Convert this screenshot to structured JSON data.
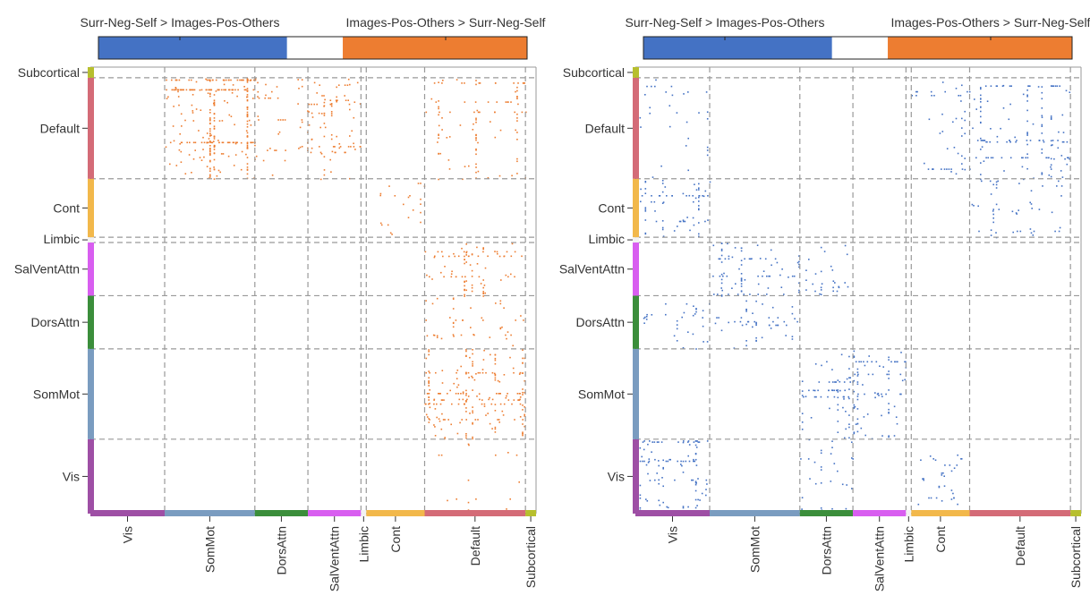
{
  "chart_data": [
    {
      "type": "heatmap",
      "title": "",
      "xlabel": "",
      "ylabel": "",
      "colorbar": {
        "left_label": "Surr-Neg-Self > Images-Pos-Others",
        "right_label": "Images-Pos-Others > Surr-Neg-Self",
        "left_color": "#4472c4",
        "middle_color": "#ffffff",
        "right_color": "#ed7d31"
      },
      "networks": [
        {
          "name": "Vis",
          "color": "#9e4fa5",
          "size": 14
        },
        {
          "name": "SomMot",
          "color": "#7a9cc0",
          "size": 17
        },
        {
          "name": "DorsAttn",
          "color": "#3b8e3b",
          "size": 10
        },
        {
          "name": "SalVentAttn",
          "color": "#d85ef0",
          "size": 10
        },
        {
          "name": "Limbic",
          "color": "#f2f2f2",
          "size": 1
        },
        {
          "name": "Cont",
          "color": "#f2b84b",
          "size": 11
        },
        {
          "name": "Default",
          "color": "#d46b77",
          "size": 19
        },
        {
          "name": "Subcortical",
          "color": "#b7bf2e",
          "size": 2
        }
      ],
      "series": [
        {
          "color": "#ed7d31",
          "cells": [
            {
              "row": "Default",
              "col": "SomMot",
              "density": 0.16
            },
            {
              "row": "Default",
              "col": "DorsAttn",
              "density": 0.04
            },
            {
              "row": "Default",
              "col": "SalVentAttn",
              "density": 0.08
            },
            {
              "row": "Default",
              "col": "Default",
              "density": 0.05
            },
            {
              "row": "Cont",
              "col": "Cont",
              "density": 0.03
            },
            {
              "row": "SalVentAttn",
              "col": "Default",
              "density": 0.08
            },
            {
              "row": "DorsAttn",
              "col": "Default",
              "density": 0.04
            },
            {
              "row": "SomMot",
              "col": "Default",
              "density": 0.12
            },
            {
              "row": "Vis",
              "col": "Default",
              "density": 0.01
            }
          ]
        },
        {
          "color": "#4472c4",
          "cells": [
            {
              "row": "Default",
              "col": "Default",
              "density": 0.07
            },
            {
              "row": "Default",
              "col": "Vis",
              "density": 0.02
            },
            {
              "row": "Default",
              "col": "Cont",
              "density": 0.04
            },
            {
              "row": "Cont",
              "col": "Vis",
              "density": 0.08
            },
            {
              "row": "Cont",
              "col": "Default",
              "density": 0.04
            },
            {
              "row": "SalVentAttn",
              "col": "SomMot",
              "density": 0.09
            },
            {
              "row": "SalVentAttn",
              "col": "DorsAttn",
              "density": 0.05
            },
            {
              "row": "DorsAttn",
              "col": "Vis",
              "density": 0.04
            },
            {
              "row": "DorsAttn",
              "col": "SomMot",
              "density": 0.05
            },
            {
              "row": "SomMot",
              "col": "DorsAttn",
              "density": 0.07
            },
            {
              "row": "SomMot",
              "col": "SalVentAttn",
              "density": 0.09
            },
            {
              "row": "Vis",
              "col": "Vis",
              "density": 0.09
            },
            {
              "row": "Vis",
              "col": "DorsAttn",
              "density": 0.04
            },
            {
              "row": "Vis",
              "col": "Cont",
              "density": 0.04
            }
          ]
        }
      ]
    }
  ]
}
